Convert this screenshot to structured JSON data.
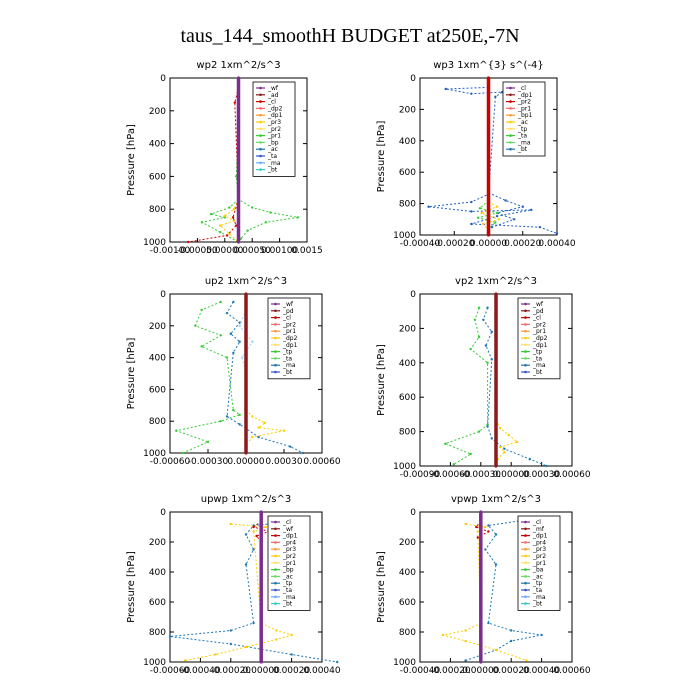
{
  "title": "taus_144_smoothH  BUDGET at250E,-7N",
  "chart_data": [
    {
      "type": "line",
      "title": "wp2   1xm^2/s^3",
      "ylabel": "Pressure [hPa]",
      "xlim": [
        -0.0015,
        0.0015
      ],
      "xticks": [
        "-0.00100",
        "-0.00050",
        "0.00000",
        "0.00050",
        "0.00100",
        "0.0015"
      ],
      "ylim": [
        1000,
        0
      ],
      "yticks": [
        "0",
        "200",
        "400",
        "600",
        "800",
        "1000"
      ],
      "legend": [
        "_wf",
        "_ad",
        "_cl",
        "_dp2",
        "_dp1",
        "_pr3",
        "_pr2",
        "_pr1",
        "_bp",
        "_ac",
        "_ta",
        "_ma",
        "_bt"
      ],
      "legend_position": "top-right",
      "series": [
        {
          "color": "#33cc33",
          "x": [
            0,
            0,
            -5e-05,
            0,
            0.0003,
            0.0007,
            0.0013,
            0.0006,
            0.0002,
            5e-05,
            0
          ],
          "y": [
            50,
            300,
            600,
            740,
            790,
            820,
            850,
            880,
            930,
            980,
            1000
          ]
        },
        {
          "color": "#33cc33",
          "x": [
            0,
            -0.0002,
            -0.0006,
            -0.0003,
            -0.0008,
            -0.0004,
            0
          ],
          "y": [
            740,
            790,
            830,
            850,
            880,
            940,
            1000
          ]
        },
        {
          "color": "#ffcc00",
          "x": [
            0,
            -0.0001,
            -0.0003,
            -0.0001,
            -0.0004,
            -0.0002,
            0
          ],
          "y": [
            740,
            800,
            840,
            870,
            900,
            950,
            1000
          ]
        },
        {
          "color": "#cc0000",
          "x": [
            0,
            -8e-05,
            0,
            -0.00012,
            -5e-05,
            -0.00025,
            -0.0011
          ],
          "y": [
            60,
            150,
            740,
            850,
            900,
            960,
            1000
          ]
        },
        {
          "color": "#7b2d8e",
          "x": [
            0,
            0,
            0,
            0
          ],
          "y": [
            0,
            300,
            800,
            1000
          ]
        }
      ]
    },
    {
      "type": "line",
      "title": "wp3   1xm^{3} s^(-4}",
      "ylabel": "Pressure [hPa]",
      "xlim": [
        -0.0004,
        0.0004
      ],
      "xticks": [
        "-0.00040",
        "-0.00020",
        "0.00000",
        "0.00020",
        "0.00040"
      ],
      "ylim": [
        1000,
        0
      ],
      "yticks": [
        "0",
        "200",
        "400",
        "600",
        "800",
        "1000"
      ],
      "legend": [
        "_cl",
        "_dp1",
        "_pr2",
        "_pr1",
        "_bp1",
        "_ac",
        "_tp",
        "_ta",
        "_ma",
        "_bt"
      ],
      "legend_position": "top-right",
      "series": [
        {
          "color": "#1f5fbf",
          "x": [
            0,
            -0.00025,
            -0.0001,
            8e-05,
            4e-05,
            0,
            -0.0001,
            -0.00035,
            -0.0001,
            0.00025,
            5e-05,
            -0.0001,
            0.0003,
            0.0004
          ],
          "y": [
            60,
            70,
            100,
            90,
            120,
            740,
            790,
            820,
            850,
            840,
            880,
            930,
            950,
            990
          ]
        },
        {
          "color": "#1f5fbf",
          "x": [
            0,
            0.0001,
            0.0002,
            5e-05,
            0.00015,
            2e-05
          ],
          "y": [
            730,
            780,
            820,
            860,
            900,
            950
          ]
        },
        {
          "color": "#33cc33",
          "x": [
            0,
            -5e-05,
            5e-05,
            -6e-05,
            4e-05,
            0
          ],
          "y": [
            780,
            830,
            860,
            890,
            920,
            960
          ]
        },
        {
          "color": "#ffcc00",
          "x": [
            0,
            5e-05,
            -4e-05,
            6e-05,
            -3e-05,
            0
          ],
          "y": [
            790,
            820,
            860,
            900,
            930,
            970
          ]
        },
        {
          "color": "#cc0000",
          "x": [
            0,
            0,
            0,
            0
          ],
          "y": [
            0,
            300,
            800,
            1000
          ]
        }
      ]
    },
    {
      "type": "line",
      "title": "up2   1xm^2/s^3",
      "ylabel": "Pressure [hPa]",
      "xlim": [
        -0.0006,
        0.0006
      ],
      "xticks": [
        "-0.00060",
        "-0.00030",
        "0.00000",
        "0.00030",
        "0.00060"
      ],
      "ylim": [
        1000,
        0
      ],
      "yticks": [
        "0",
        "200",
        "400",
        "600",
        "800",
        "1000"
      ],
      "legend": [
        "_wf",
        "_pd",
        "_cl",
        "_pr2",
        "_pr1",
        "_dp2",
        "_dp1",
        "_tp",
        "_ta",
        "_ma",
        "_bt"
      ],
      "legend_position": "top-right",
      "series": [
        {
          "color": "#33cc33",
          "x": [
            -0.0002,
            -0.00035,
            -0.0004,
            -0.0002,
            -0.00035,
            -0.00015,
            -0.0001,
            -5e-05,
            -0.0002,
            -0.00055,
            -0.0003,
            -0.0005
          ],
          "y": [
            50,
            100,
            200,
            260,
            330,
            400,
            730,
            760,
            800,
            860,
            930,
            1000
          ]
        },
        {
          "color": "#1f77b4",
          "x": [
            -0.0001,
            -0.00015,
            -5e-05,
            -0.00012,
            -5e-05,
            -0.0001,
            -0.00015,
            -5e-05,
            0.0001,
            0.00035,
            0.00045
          ],
          "y": [
            50,
            120,
            180,
            250,
            300,
            370,
            770,
            820,
            900,
            960,
            1000
          ]
        },
        {
          "color": "#ffcc00",
          "x": [
            0,
            5e-05,
            0.00015,
            0.0001,
            0.0003,
            5e-05,
            0
          ],
          "y": [
            730,
            770,
            810,
            840,
            860,
            900,
            950
          ]
        },
        {
          "color": "#9bd1ff",
          "x": [
            0,
            -5e-05,
            5e-05,
            -3e-05,
            0
          ],
          "y": [
            100,
            200,
            300,
            400,
            500
          ]
        },
        {
          "color": "#8b1a1a",
          "x": [
            0,
            0,
            0,
            0
          ],
          "y": [
            0,
            300,
            800,
            1000
          ]
        }
      ]
    },
    {
      "type": "line",
      "title": "vp2   1xm^2/s^3",
      "ylabel": "Pressure [hPa]",
      "xlim": [
        -0.0009,
        0.0009
      ],
      "xticks": [
        "-0.00090",
        "-0.00060",
        "-0.00030",
        "0.00000",
        "0.00030",
        "0.00060"
      ],
      "ylim": [
        1000,
        0
      ],
      "yticks": [
        "0",
        "200",
        "400",
        "600",
        "800",
        "1000"
      ],
      "legend": [
        "_wf",
        "_pd",
        "_cl",
        "_pr2",
        "_pr1",
        "_dp2",
        "_dp1",
        "_tp",
        "_ta",
        "_ma",
        "_bt"
      ],
      "legend_position": "top-right",
      "series": [
        {
          "color": "#33cc33",
          "x": [
            -0.0002,
            -0.00025,
            -0.0002,
            -0.0003,
            -0.0001,
            -0.0001,
            -0.0002,
            -0.0006,
            -0.0003,
            -0.0005
          ],
          "y": [
            80,
            150,
            250,
            320,
            400,
            760,
            800,
            870,
            930,
            990
          ]
        },
        {
          "color": "#1f77b4",
          "x": [
            -0.0001,
            -0.00015,
            -5e-05,
            -0.00012,
            -5e-05,
            -0.0001,
            -5e-05,
            0.0001,
            0.0004,
            0.0006
          ],
          "y": [
            80,
            150,
            220,
            300,
            380,
            770,
            840,
            900,
            960,
            1000
          ]
        },
        {
          "color": "#ffcc00",
          "x": [
            0,
            5e-05,
            0.00015,
            0.00025,
            5e-05,
            0.0001,
            2e-05
          ],
          "y": [
            730,
            780,
            820,
            860,
            890,
            920,
            960
          ]
        },
        {
          "color": "#8b1a1a",
          "x": [
            0,
            0,
            0,
            0
          ],
          "y": [
            0,
            300,
            800,
            1000
          ]
        }
      ]
    },
    {
      "type": "line",
      "title": "upwp   1xm^2/s^3",
      "ylabel": "Pressure [hPa]",
      "xlim": [
        -0.0006,
        0.0004
      ],
      "xticks": [
        "-0.00060",
        "-0.00040",
        "-0.00020",
        "0.00000",
        "0.00020",
        "0.00040"
      ],
      "ylim": [
        1000,
        0
      ],
      "yticks": [
        "0",
        "200",
        "400",
        "600",
        "800",
        "1000"
      ],
      "legend": [
        "_cl",
        "_wf",
        "_dp1",
        "_pr4",
        "_pr3",
        "_pr2",
        "_pr1",
        "_bp",
        "_ac",
        "_tp",
        "_ta",
        "_ma",
        "_bt"
      ],
      "legend_position": "top-right",
      "series": [
        {
          "color": "#1f77b4",
          "x": [
            0.00025,
            -5e-05,
            -0.0001,
            -5e-05,
            -0.0001,
            -5e-05,
            -0.0002,
            -0.0006,
            -0.0002,
            0.0002,
            0.0005
          ],
          "y": [
            60,
            90,
            150,
            250,
            350,
            740,
            790,
            830,
            880,
            950,
            1000
          ]
        },
        {
          "color": "#ffcc00",
          "x": [
            -0.0002,
            3e-05,
            -5e-05,
            0,
            0.0001,
            0.0002,
            0.0001,
            -0.0001,
            -0.0003,
            -0.0005
          ],
          "y": [
            80,
            100,
            130,
            740,
            790,
            820,
            850,
            900,
            950,
            990
          ]
        },
        {
          "color": "#cc0000",
          "x": [
            0,
            -5e-05,
            5e-05,
            -3e-05,
            0
          ],
          "y": [
            60,
            100,
            130,
            160,
            200
          ]
        },
        {
          "color": "#7b2d8e",
          "x": [
            0,
            0,
            0,
            0
          ],
          "y": [
            0,
            300,
            800,
            1000
          ]
        }
      ]
    },
    {
      "type": "line",
      "title": "vpwp   1xm^2/s^3",
      "ylabel": "Pressure [hPa]",
      "xlim": [
        -0.0004,
        0.0006
      ],
      "xticks": [
        "-0.00040",
        "-0.00020",
        "0.00000",
        "0.00020",
        "0.00040",
        "0.00060"
      ],
      "ylim": [
        1000,
        0
      ],
      "yticks": [
        "0",
        "200",
        "400",
        "600",
        "800",
        "1000"
      ],
      "legend": [
        "_cl",
        "_mf",
        "_dp1",
        "_pr4",
        "_pr3",
        "_pr2",
        "_pr1",
        "_ba",
        "_ac",
        "_tp",
        "_ta",
        "_ma",
        "_bt"
      ],
      "legend_position": "top-right",
      "series": [
        {
          "color": "#1f77b4",
          "x": [
            0.00025,
            5e-05,
            0.0001,
            3e-05,
            0.0001,
            5e-05,
            0.0002,
            0.0004,
            0.0002,
            0.0001,
            -0.0001
          ],
          "y": [
            60,
            90,
            150,
            250,
            350,
            740,
            790,
            820,
            860,
            920,
            990
          ]
        },
        {
          "color": "#ffcc00",
          "x": [
            -0.0001,
            3e-05,
            -2e-05,
            0,
            -0.0001,
            -0.00025,
            -0.0001,
            0.0001,
            0.0003
          ],
          "y": [
            80,
            100,
            130,
            740,
            790,
            820,
            860,
            920,
            990
          ]
        },
        {
          "color": "#cc0000",
          "x": [
            0,
            -3e-05,
            5e-05,
            -2e-05,
            0
          ],
          "y": [
            60,
            100,
            130,
            170,
            210
          ]
        },
        {
          "color": "#7b2d8e",
          "x": [
            0,
            0,
            0,
            0
          ],
          "y": [
            0,
            300,
            800,
            1000
          ]
        }
      ]
    }
  ]
}
